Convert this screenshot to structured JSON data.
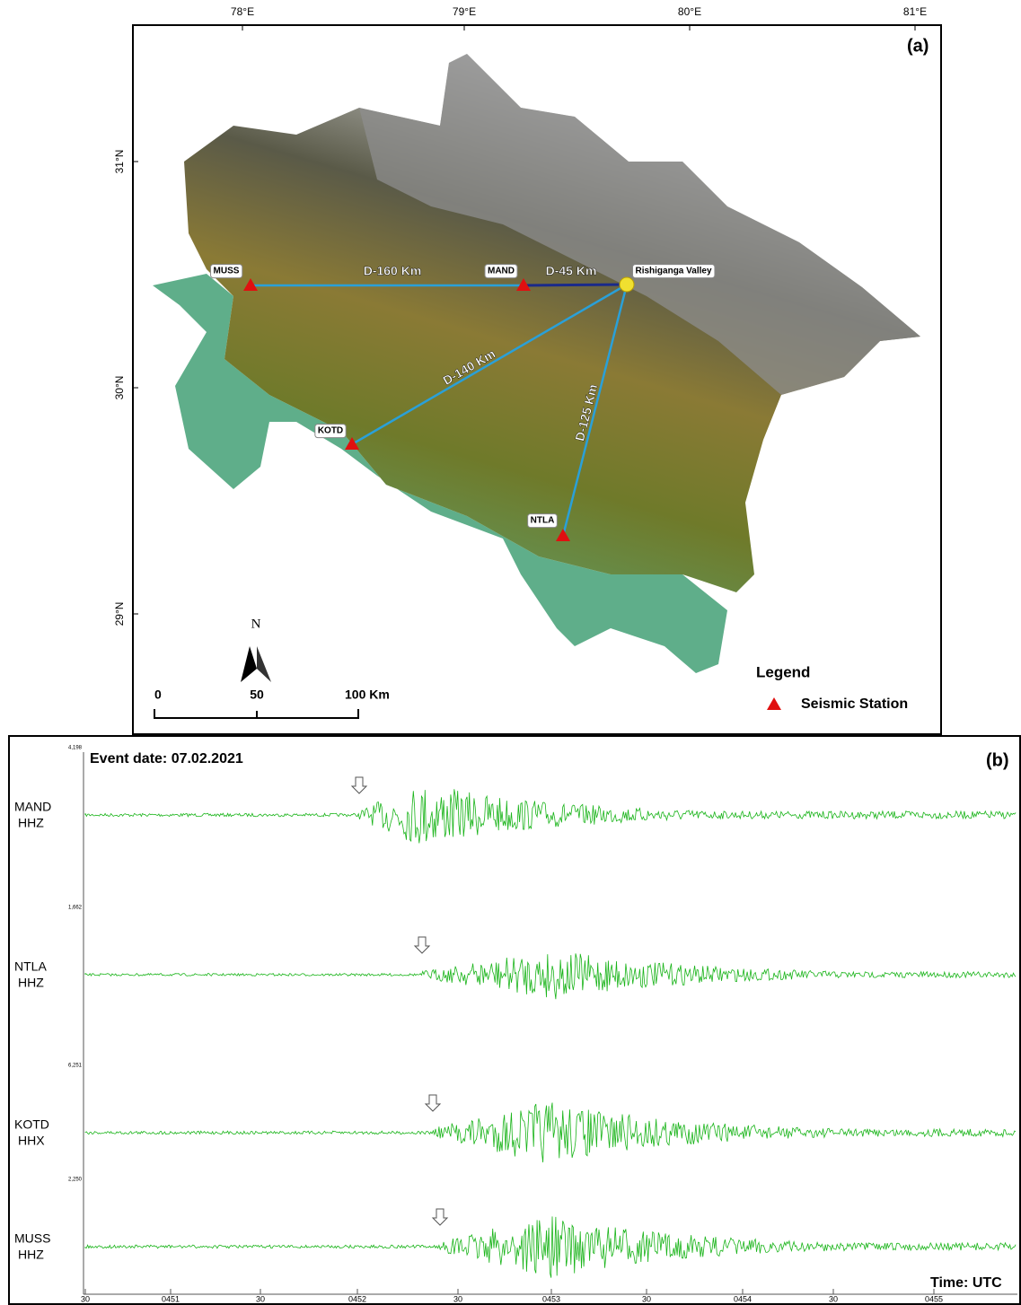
{
  "map": {
    "panel_label": "(a)",
    "lon_ticks": [
      "78°E",
      "79°E",
      "80°E",
      "81°E"
    ],
    "lat_ticks": [
      "31°N",
      "30°N",
      "29°N"
    ],
    "stations": [
      "MUSS",
      "MAND",
      "KOTD",
      "NTLA"
    ],
    "epicenter": "Rishiganga Valley",
    "distances": [
      "D-160 Km",
      "D-45 Km",
      "D-140 Km",
      "D-125 Km"
    ],
    "north": "N",
    "scale_labels": [
      "0",
      "50",
      "100 Km"
    ],
    "legend": {
      "title": "Legend",
      "item": "Seismic Station"
    }
  },
  "seismograms": {
    "panel_label": "(b)",
    "event": "Event date: 07.02.2021",
    "traces": [
      {
        "station": "MAND",
        "channel": "HHZ",
        "amplitude": "4,198"
      },
      {
        "station": "NTLA",
        "channel": "HHZ",
        "amplitude": "1,662"
      },
      {
        "station": "KOTD",
        "channel": "HHX",
        "amplitude": "6,251"
      },
      {
        "station": "MUSS",
        "channel": "HHZ",
        "amplitude": "2,250"
      }
    ],
    "time_labels": [
      "30",
      "0451",
      "30",
      "0452",
      "30",
      "0453",
      "30",
      "0454",
      "30",
      "0455"
    ],
    "axis_title": "Time: UTC"
  }
}
